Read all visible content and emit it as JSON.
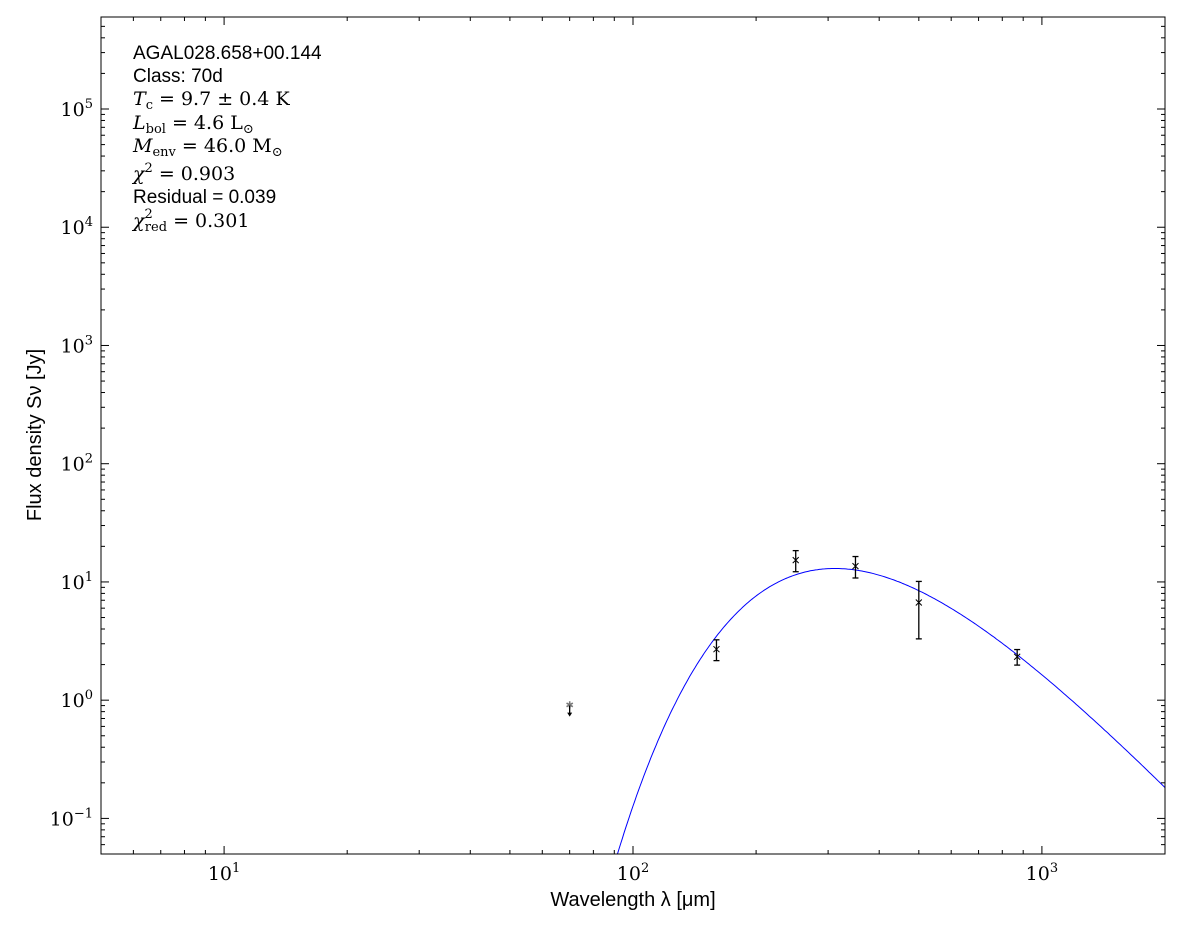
{
  "chart_data": {
    "type": "scatter",
    "xlabel": "Wavelength λ [μm]",
    "ylabel": "Flux density Sν [Jy]",
    "xscale": "log",
    "yscale": "log",
    "xlim": [
      5,
      2000
    ],
    "ylim": [
      0.05,
      600000
    ],
    "x_ticks": [
      {
        "base": "10",
        "exp": "1",
        "value": 10
      },
      {
        "base": "10",
        "exp": "2",
        "value": 100
      },
      {
        "base": "10",
        "exp": "3",
        "value": 1000
      }
    ],
    "y_ticks": [
      {
        "base": "10",
        "exp": "−1",
        "value": 0.1
      },
      {
        "base": "10",
        "exp": "0",
        "value": 1
      },
      {
        "base": "10",
        "exp": "1",
        "value": 10
      },
      {
        "base": "10",
        "exp": "2",
        "value": 100
      },
      {
        "base": "10",
        "exp": "3",
        "value": 1000
      },
      {
        "base": "10",
        "exp": "4",
        "value": 10000
      },
      {
        "base": "10",
        "exp": "5",
        "value": 100000
      }
    ],
    "grid": false,
    "points": [
      {
        "wavelength": 160,
        "flux": 2.7,
        "err": 0.54
      },
      {
        "wavelength": 250,
        "flux": 15.3,
        "err": 3.1
      },
      {
        "wavelength": 350,
        "flux": 13.6,
        "err": 2.8
      },
      {
        "wavelength": 500,
        "flux": 6.7,
        "err": 3.4
      },
      {
        "wavelength": 870,
        "flux": 2.33,
        "err": 0.35
      }
    ],
    "upper_limits": [
      {
        "wavelength": 70,
        "flux": 0.9
      }
    ],
    "model_curve": {
      "type": "modified blackbody",
      "temperature_K": 9.7,
      "color": "#0000ff"
    },
    "annotation": {
      "source": "AGAL028.658+00.144",
      "class_text": "Class: 70d",
      "tc": {
        "sym": "T",
        "sub": "c",
        "rest": " = 9.7 ± 0.4 K"
      },
      "lbol": {
        "sym": "L",
        "sub": "bol",
        "rest": " = 4.6 L",
        "tail": "⊙"
      },
      "menv": {
        "sym": "M",
        "sub": "env",
        "rest": " = 46.0 M",
        "tail": "⊙"
      },
      "chi2": {
        "sym": "χ",
        "sup": "2",
        "rest": " = 0.903"
      },
      "residual": "Residual = 0.039",
      "chi2red": {
        "sym": "χ",
        "sup": "2",
        "sub": "red",
        "rest": " = 0.301"
      }
    }
  }
}
